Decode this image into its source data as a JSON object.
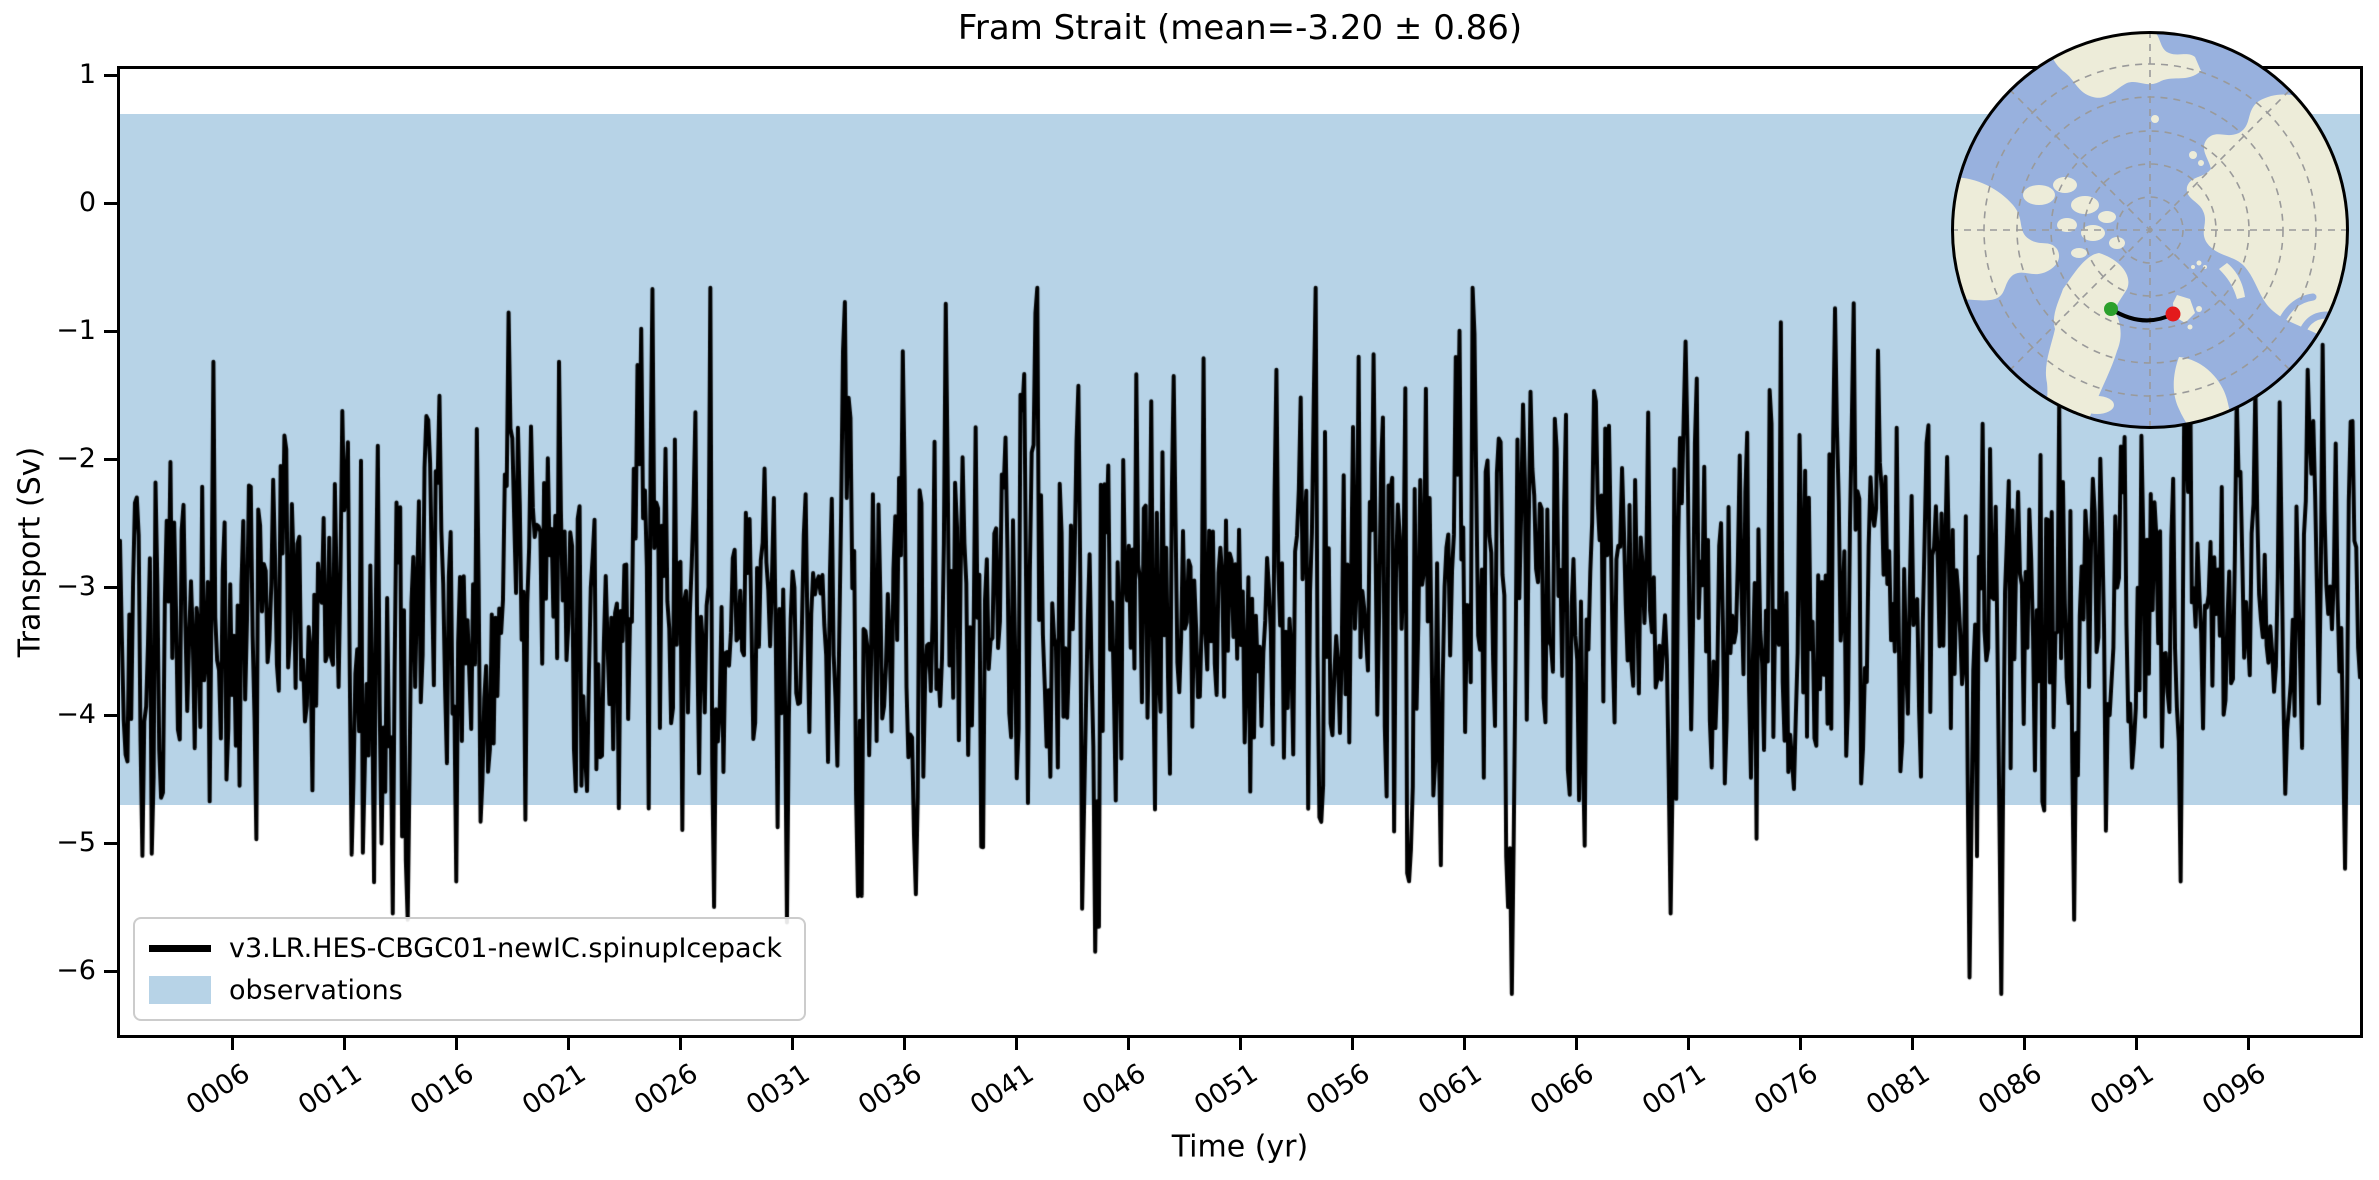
{
  "figure": {
    "background": "#ffffff"
  },
  "chart_data": {
    "type": "line",
    "title": "Fram Strait (mean=-3.20 ± 0.86)",
    "xlabel": "Time (yr)",
    "ylabel": "Transport (Sv)",
    "xlim": [
      1,
      101
    ],
    "ylim": [
      -6.5,
      1.05
    ],
    "grid": false,
    "legend_position": "lower left",
    "xtick_values": [
      6,
      11,
      16,
      21,
      26,
      31,
      36,
      41,
      46,
      51,
      56,
      61,
      66,
      71,
      76,
      81,
      86,
      91,
      96
    ],
    "xtick_labels": [
      "0006",
      "0011",
      "0016",
      "0021",
      "0026",
      "0031",
      "0036",
      "0041",
      "0046",
      "0051",
      "0056",
      "0061",
      "0066",
      "0071",
      "0076",
      "0081",
      "0086",
      "0091",
      "0096"
    ],
    "ytick_values": [
      1,
      0,
      -1,
      -2,
      -3,
      -4,
      -5,
      -6
    ],
    "ytick_labels": [
      "1",
      "0",
      "−1",
      "−2",
      "−3",
      "−4",
      "−5",
      "−6"
    ],
    "series": [
      {
        "name": "v3.LR.HES-CBGC01-newIC.spinupIcepack",
        "color": "#000000",
        "line_width": 4,
        "stats": {
          "mean": -3.2,
          "std": 0.86,
          "min": -6.18,
          "max": -0.66
        },
        "year_start": 1,
        "year_end": 101,
        "points_per_year": 12,
        "synthesis": {
          "seed": 1337,
          "ar": 0.25
        },
        "anchors": [
          [
            2.0,
            -5.1
          ],
          [
            13.2,
            -5.55
          ],
          [
            16.0,
            -5.3
          ],
          [
            24.8,
            -0.67
          ],
          [
            27.5,
            -5.5
          ],
          [
            30.8,
            -5.62
          ],
          [
            36.5,
            -5.4
          ],
          [
            44.5,
            -5.85
          ],
          [
            48.0,
            -1.35
          ],
          [
            52.6,
            -1.3
          ],
          [
            57.0,
            -1.18
          ],
          [
            60.6,
            -1.2
          ],
          [
            63.0,
            -5.5
          ],
          [
            70.2,
            -5.55
          ],
          [
            70.9,
            -1.08
          ],
          [
            77.6,
            -0.82
          ],
          [
            78.4,
            -0.78
          ],
          [
            79.5,
            -1.15
          ],
          [
            83.6,
            -6.05
          ],
          [
            85.0,
            -6.18
          ],
          [
            88.2,
            -5.6
          ],
          [
            90.3,
            -1.9
          ],
          [
            93.0,
            -5.3
          ],
          [
            98.7,
            -1.3
          ],
          [
            100.3,
            -5.2
          ]
        ]
      }
    ],
    "band": {
      "label": "observations",
      "range": [
        -4.7,
        0.7
      ],
      "color": "#b7d3e7"
    }
  },
  "inset_map": {
    "description": "polar stereographic Arctic locator map with Fram Strait transect",
    "ocean_color": "#98b1de",
    "land_color": "#edecd9",
    "graticule_color": "#9a9a9a",
    "border_color": "#000000",
    "transect": {
      "line_color": "#000000",
      "start_marker_color": "#2ca02c",
      "end_marker_color": "#e31a1c"
    }
  }
}
